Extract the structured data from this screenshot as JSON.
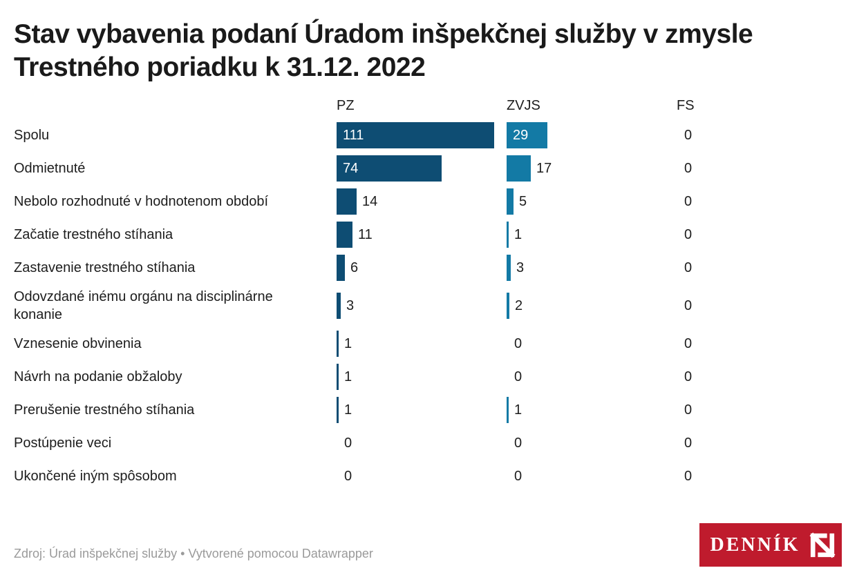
{
  "title": "Stav vybavenia podaní Úradom inšpekčnej služby v zmysle Trestného poriadku k 31.12. 2022",
  "footer": {
    "source": "Zdroj: Úrad inšpekčnej služby • Vytvorené pomocou Datawrapper",
    "logo_text": "DENNÍK"
  },
  "colors": {
    "pz_bar": "#0e4d73",
    "zvjs_bar": "#137aa5",
    "text": "#1d1d1d",
    "source_text": "#9a9a9a",
    "logo_red": "#bf1b2d",
    "bar_label_inside": "#ffffff"
  },
  "chart_data": {
    "type": "bar",
    "orientation": "horizontal",
    "title": "Stav vybavenia podaní Úradom inšpekčnej služby v zmysle Trestného poriadku k 31.12. 2022",
    "columns": [
      "PZ",
      "ZVJS",
      "FS"
    ],
    "categories": [
      "Spolu",
      "Odmietnuté",
      "Nebolo rozhodnuté v hodnotenom období",
      "Začatie trestného stíhania",
      "Zastavenie trestného stíhania",
      "Odovzdané inému orgánu na disciplinárne konanie",
      "Vznesenie obvinenia",
      "Návrh na podanie obžaloby",
      "Prerušenie trestného stíhania",
      "Postúpenie veci",
      "Ukončené iným spôsobom"
    ],
    "series": [
      {
        "name": "PZ",
        "color": "#0e4d73",
        "values": [
          111,
          74,
          14,
          11,
          6,
          3,
          1,
          1,
          1,
          0,
          0
        ]
      },
      {
        "name": "ZVJS",
        "color": "#137aa5",
        "values": [
          29,
          17,
          5,
          1,
          3,
          2,
          0,
          0,
          1,
          0,
          0
        ]
      },
      {
        "name": "FS",
        "color": "#137aa5",
        "values": [
          0,
          0,
          0,
          0,
          0,
          0,
          0,
          0,
          0,
          0,
          0
        ]
      }
    ],
    "value_labels": "inside bar when bar wide enough, otherwise right of bar",
    "xlim": [
      0,
      120
    ],
    "grid": false,
    "legend": "column headers above each bar column"
  }
}
